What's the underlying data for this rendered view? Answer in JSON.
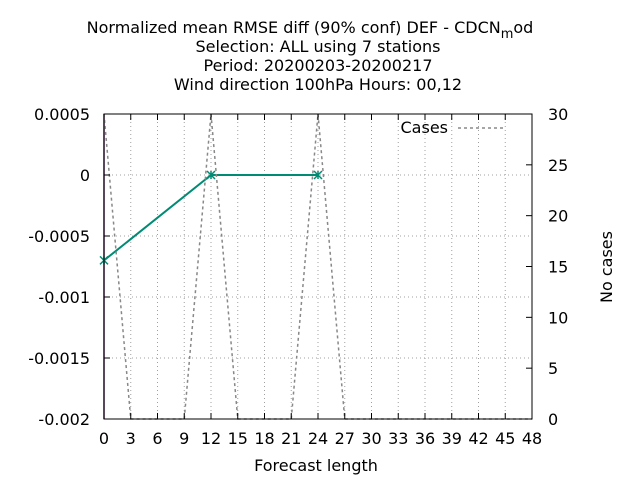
{
  "chart_data": {
    "type": "line",
    "title_lines": [
      "Normalized mean RMSE diff (90% conf) DEF - CDCN",
      "Selection: ALL using     7 stations",
      "Period: 20200203-20200217",
      "Wind direction 100hPa   Hours:  00,12"
    ],
    "title_subscript": "m",
    "title_suffix": "od",
    "xlabel": "Forecast length",
    "ylabel": "",
    "y2label": "No cases",
    "xlim": [
      0,
      48
    ],
    "ylim": [
      -0.002,
      0.0005
    ],
    "y2lim": [
      0,
      30
    ],
    "x_ticks": [
      "0",
      "3",
      "6",
      "9",
      "12",
      "15",
      "18",
      "21",
      "24",
      "27",
      "30",
      "33",
      "36",
      "39",
      "42",
      "45",
      "48"
    ],
    "y_ticks": [
      "0.0005",
      "0",
      "-0.0005",
      "-0.001",
      "-0.0015",
      "-0.002"
    ],
    "y2_ticks": [
      "30",
      "25",
      "20",
      "15",
      "10",
      "5",
      "0"
    ],
    "grid": true,
    "legend_position": "top-right",
    "series": [
      {
        "name": "",
        "axis": "y",
        "color": "#008b74",
        "x": [
          0,
          12,
          24
        ],
        "y": [
          -0.0007,
          0.0,
          0.0
        ]
      },
      {
        "name": "Cases",
        "axis": "y2",
        "color": "#888888",
        "dashed": true,
        "x": [
          0,
          3,
          9,
          12,
          15,
          21,
          24,
          27,
          48
        ],
        "y": [
          30,
          0,
          0,
          30,
          0,
          0,
          30,
          0,
          0
        ]
      }
    ],
    "error_bars": [
      {
        "x": 0,
        "low": -0.002,
        "high": 0.0005,
        "color": "#6a1b6a"
      }
    ]
  }
}
